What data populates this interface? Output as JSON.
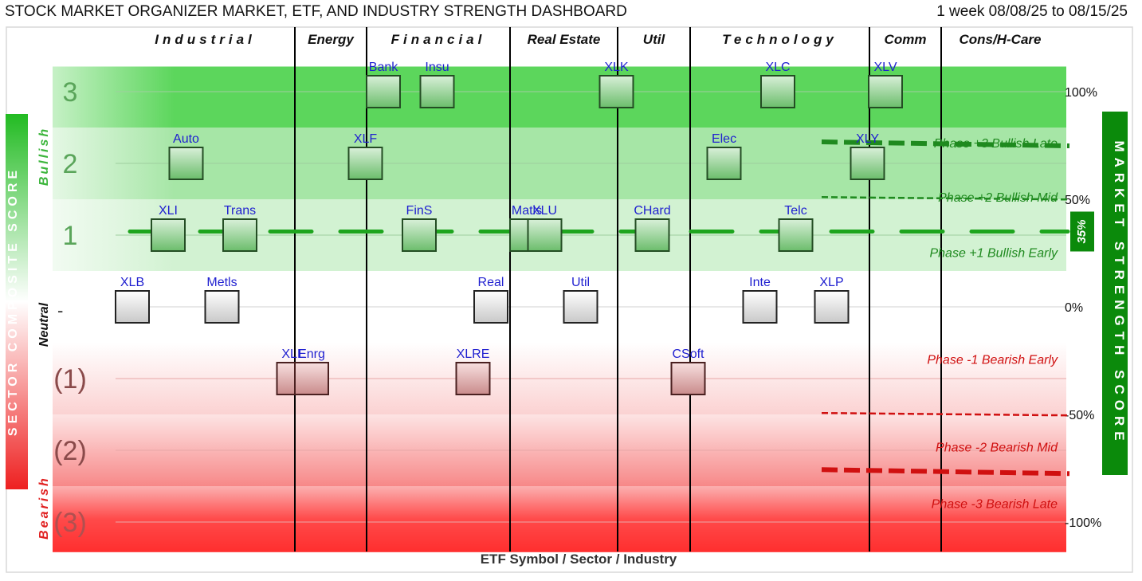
{
  "page": {
    "title": "STOCK MARKET ORGANIZER MARKET, ETF, AND INDUSTRY STRENGTH DASHBOARD",
    "date_range": "1 week 08/08/25 to 08/15/25"
  },
  "chart_data": {
    "type": "scatter",
    "title": "STOCK MARKET ORGANIZER MARKET, ETF, AND INDUSTRY STRENGTH DASHBOARD",
    "xlabel": "ETF Symbol / Sector / Industry",
    "ylabel_left": "SECTOR COMPOSITE SCORE",
    "ylabel_right": "MARKET STRENGTH SCORE",
    "ylim": [
      -3.5,
      3.5
    ],
    "left_ticks": [
      {
        "value": 3,
        "label": "3",
        "color": "#5aa55a"
      },
      {
        "value": 2,
        "label": "2",
        "color": "#5aa55a"
      },
      {
        "value": 1,
        "label": "1",
        "color": "#5aa55a"
      },
      {
        "value": 0,
        "label": "-",
        "color": "#333333"
      },
      {
        "value": -1,
        "label": "(1)",
        "color": "#8a4a4a"
      },
      {
        "value": -2,
        "label": "(2)",
        "color": "#8a4a4a"
      },
      {
        "value": -3,
        "label": "(3)",
        "color": "#b05050"
      }
    ],
    "right_ticks": [
      {
        "value": 3,
        "label": "100%"
      },
      {
        "value": 1.5,
        "label": "50%"
      },
      {
        "value": 0,
        "label": "0%"
      },
      {
        "value": -1.5,
        "label": "-50%"
      },
      {
        "value": -3,
        "label": "-100%"
      }
    ],
    "zone_labels": [
      {
        "label": "Bullish",
        "value": 2.1,
        "color": "#3cb53c"
      },
      {
        "label": "Neutral",
        "value": -0.25,
        "color": "#111111"
      },
      {
        "label": "Bearish",
        "value": -2.8,
        "color": "#e02020"
      }
    ],
    "sectors": [
      {
        "name": "Industrial",
        "from": 0,
        "to": 4,
        "spaced": true
      },
      {
        "name": "Energy",
        "from": 4,
        "to": 5,
        "spaced": false
      },
      {
        "name": "Financial",
        "from": 5,
        "to": 7,
        "spaced": true
      },
      {
        "name": "Real Estate",
        "from": 7,
        "to": 8,
        "spaced": false
      },
      {
        "name": "Util",
        "from": 8,
        "to": 9,
        "spaced": false
      },
      {
        "name": "Technology",
        "from": 9,
        "to": 11.5,
        "spaced": true
      },
      {
        "name": "Comm",
        "from": 11.5,
        "to": 12.5,
        "spaced": false
      },
      {
        "name": "Cons/H-Care",
        "from": 12.5,
        "to": 14,
        "spaced": false
      }
    ],
    "points": [
      {
        "symbol": "XLB",
        "x": 0,
        "score": 0
      },
      {
        "symbol": "XLI",
        "x": 1,
        "score": 1
      },
      {
        "symbol": "Auto",
        "x": 1.5,
        "score": 2
      },
      {
        "symbol": "Metls",
        "x": 2.5,
        "score": 0
      },
      {
        "symbol": "Trans",
        "x": 3,
        "score": 1
      },
      {
        "symbol": "XLE",
        "x": 4.5,
        "score": -1
      },
      {
        "symbol": "Enrg",
        "x": 5,
        "score": -1
      },
      {
        "symbol": "XLF",
        "x": 6.5,
        "score": 2
      },
      {
        "symbol": "Bank",
        "x": 7,
        "score": 3
      },
      {
        "symbol": "FinS",
        "x": 8,
        "score": 1
      },
      {
        "symbol": "Insu",
        "x": 8.5,
        "score": 3
      },
      {
        "symbol": "XLRE",
        "x": 9.5,
        "score": -1
      },
      {
        "symbol": "Real",
        "x": 10,
        "score": 0
      },
      {
        "symbol": "Matls",
        "x": 11,
        "score": 1
      },
      {
        "symbol": "XLU",
        "x": 11.5,
        "score": 1
      },
      {
        "symbol": "Util",
        "x": 12.5,
        "score": 0
      },
      {
        "symbol": "XLK",
        "x": 13.5,
        "score": 3
      },
      {
        "symbol": "CHard",
        "x": 14.5,
        "score": 1
      },
      {
        "symbol": "CSoft",
        "x": 15.5,
        "score": -1
      },
      {
        "symbol": "Elec",
        "x": 16.5,
        "score": 2
      },
      {
        "symbol": "Inte",
        "x": 17.5,
        "score": 0
      },
      {
        "symbol": "XLC",
        "x": 18,
        "score": 3
      },
      {
        "symbol": "Telc",
        "x": 18.5,
        "score": 1
      },
      {
        "symbol": "XLP",
        "x": 19.5,
        "score": 0
      },
      {
        "symbol": "XLY",
        "x": 20.5,
        "score": 2
      },
      {
        "symbol": "XLV",
        "x": 21,
        "score": 3
      }
    ],
    "market_strength": {
      "value": 35,
      "label": "35%"
    },
    "phases": [
      {
        "label": "Phase +3 Bullish Late",
        "value": 2.28,
        "line_value": 2.3,
        "line_style": "thick",
        "color": "#1f8a1f"
      },
      {
        "label": "Phase +2 Bullish Mid",
        "value": 1.52,
        "line_value": 1.53,
        "line_style": "thin",
        "color": "#1f8a1f"
      },
      {
        "label": "Phase +1 Bullish Early",
        "value": 0.75,
        "line_value": null,
        "line_style": "none",
        "color": "#1f8a1f"
      },
      {
        "label": "Phase -1 Bearish Early",
        "value": -0.74,
        "line_value": -1.48,
        "line_style": "thin",
        "color": "#d01010"
      },
      {
        "label": "Phase -2 Bearish Mid",
        "value": -1.96,
        "line_value": -2.27,
        "line_style": "thick",
        "color": "#d01010"
      },
      {
        "label": "Phase -3 Bearish Late",
        "value": -2.75,
        "line_value": null,
        "line_style": "none",
        "color": "#d01010"
      }
    ],
    "colors": {
      "bull_strong": "#5cd65c",
      "bull_mid": "#a6e6a6",
      "bull_light": "#d2f2d2",
      "bear_light": "#fde2e2",
      "bear_mid": "#f89a9a",
      "bear_strong": "#ff3b3b",
      "market_band": "#0b8a0b",
      "label_blue": "#1f1fd0"
    }
  }
}
